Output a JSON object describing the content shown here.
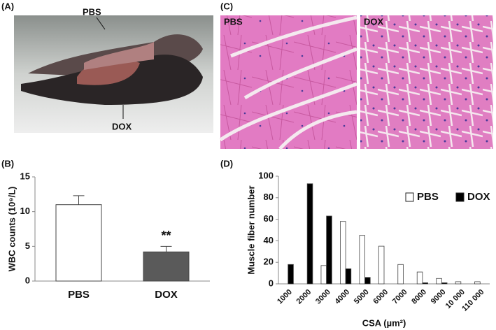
{
  "panels": [
    "(A)",
    "(B)",
    "(C)",
    "(D)"
  ],
  "photo_labels": [
    "PBS",
    "DOX"
  ],
  "histology_labels": [
    "PBS",
    "DOX"
  ],
  "chart_data": [
    {
      "type": "bar",
      "categories": [
        "PBS",
        "DOX"
      ],
      "values": [
        11,
        4.2
      ],
      "errors": [
        1.3,
        0.8
      ],
      "colors": [
        "#ffffff",
        "#5a5a5a"
      ],
      "ylabel": "WBC counts (10⁹/L)",
      "ylim": [
        0,
        15
      ],
      "yticks": [
        0,
        5,
        10,
        15
      ],
      "annotation": "**"
    },
    {
      "type": "bar",
      "categories": [
        "1000",
        "2000",
        "3000",
        "4000",
        "5000",
        "6000",
        "7000",
        "8000",
        "9000",
        "10 000",
        "110 000"
      ],
      "series": [
        {
          "name": "PBS",
          "color": "#ffffff",
          "values": [
            0,
            0,
            17,
            58,
            45,
            35,
            18,
            11,
            5,
            2,
            2
          ]
        },
        {
          "name": "DOX",
          "color": "#000000",
          "values": [
            18,
            93,
            63,
            14,
            6,
            0,
            0,
            1,
            1,
            0,
            0
          ]
        }
      ],
      "xlabel": "CSA (µm²)",
      "ylabel": "Muscle fiber number",
      "ylim": [
        0,
        100
      ],
      "yticks": [
        0,
        20,
        40,
        60,
        80,
        100
      ],
      "legend": "upper right"
    }
  ]
}
